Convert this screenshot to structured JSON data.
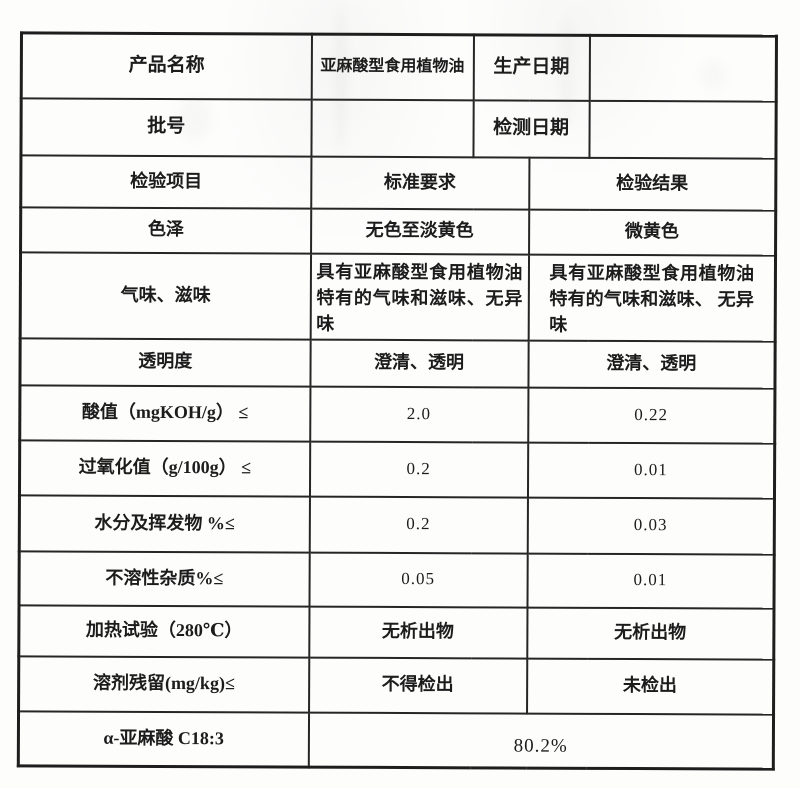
{
  "document": {
    "header_rows": [
      {
        "label1": "产品名称",
        "value1": "亚麻酸型食用植物油",
        "label2": "生产日期",
        "value2": ""
      },
      {
        "label1": "批号",
        "value1": "",
        "label2": "检测日期",
        "value2": ""
      }
    ],
    "columns": [
      "检验项目",
      "标准要求",
      "检验结果"
    ],
    "rows": [
      {
        "item": "色泽",
        "standard": "无色至淡黄色",
        "result": "微黄色"
      },
      {
        "item": "气味、滋味",
        "standard": "具有亚麻酸型食用植物油特有的气味和滋味、无异味",
        "result": "具有亚麻酸型食用植物油特有的气味和滋味、 无异味"
      },
      {
        "item": "透明度",
        "standard": "澄清、透明",
        "result": "澄清、透明"
      },
      {
        "item": "酸值（mgKOH/g） ≤",
        "standard": "2.0",
        "result": "0.22"
      },
      {
        "item": "过氧化值（g/100g） ≤",
        "standard": "0.2",
        "result": "0.01"
      },
      {
        "item": "水分及挥发物 %≤",
        "standard": "0.2",
        "result": "0.03"
      },
      {
        "item": "不溶性杂质%≤",
        "standard": "0.05",
        "result": "0.01"
      },
      {
        "item": "加热试验（280℃）",
        "standard": "无析出物",
        "result": "无析出物"
      },
      {
        "item": "溶剂残留(mg/kg)≤",
        "standard": "不得检出",
        "result": "未检出"
      }
    ],
    "footer_row": {
      "item": "α-亚麻酸 C18:3",
      "value": "80.2%"
    }
  }
}
